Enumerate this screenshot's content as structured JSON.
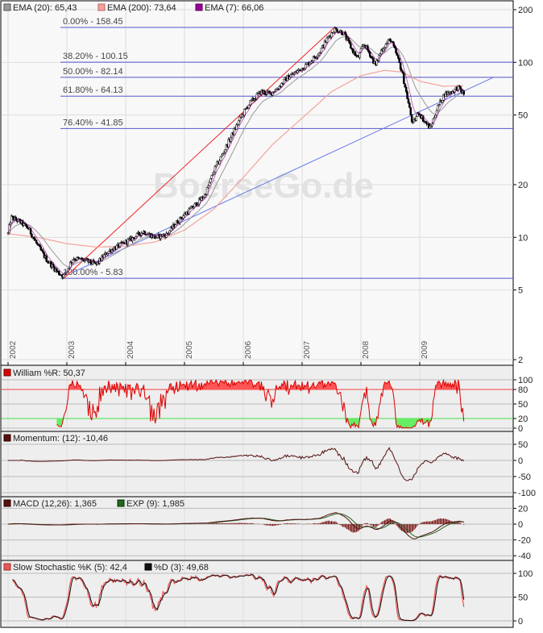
{
  "chart_data": {
    "type": "line",
    "title": "",
    "watermark": "BoerseGo.de",
    "main": {
      "scale": "log",
      "ylim": [
        2,
        200
      ],
      "yticks": [
        "200",
        "100",
        "50",
        "20",
        "10",
        "5",
        "2"
      ],
      "xlim": [
        2001.95,
        2010.25
      ],
      "xticks": [
        "2002",
        "2003",
        "2004",
        "2005",
        "2006",
        "2007",
        "2008",
        "2009"
      ],
      "legend": [
        {
          "label": "EMA (20): 65,43",
          "color": "#999999"
        },
        {
          "label": "EMA (200): 73,64",
          "color": "#f4a39a"
        },
        {
          "label": "EMA (7): 66,06",
          "color": "#990099"
        }
      ],
      "fibonacci": [
        {
          "label": "0.00% - 158.45",
          "value": 158.45
        },
        {
          "label": "38.20% - 100.15",
          "value": 100.15
        },
        {
          "label": "50.00% - 82.14",
          "value": 82.14
        },
        {
          "label": "61.80% - 64.13",
          "value": 64.13
        },
        {
          "label": "76.40% - 41.85",
          "value": 41.85
        },
        {
          "label": "100.00% - 5.83",
          "value": 5.83
        }
      ],
      "trendlines": [
        {
          "name": "red-trendline",
          "from": [
            2002.95,
            5.83
          ],
          "to": [
            2007.55,
            158.45
          ],
          "color": "#ee2222"
        },
        {
          "name": "blue-trendline",
          "from": [
            2003.1,
            6.3
          ],
          "to": [
            2010.25,
            82
          ],
          "color": "#6677ee"
        }
      ],
      "price_keypoints": [
        [
          2002.0,
          10.5
        ],
        [
          2002.05,
          13.0
        ],
        [
          2002.2,
          12.3
        ],
        [
          2002.35,
          11.2
        ],
        [
          2002.5,
          9.0
        ],
        [
          2002.65,
          7.5
        ],
        [
          2002.85,
          6.3
        ],
        [
          2002.95,
          6.0
        ],
        [
          2003.1,
          7.6
        ],
        [
          2003.3,
          7.4
        ],
        [
          2003.5,
          7.0
        ],
        [
          2003.7,
          8.3
        ],
        [
          2003.9,
          9.0
        ],
        [
          2004.1,
          9.8
        ],
        [
          2004.3,
          10.8
        ],
        [
          2004.5,
          10.0
        ],
        [
          2004.7,
          10.4
        ],
        [
          2004.85,
          12.0
        ],
        [
          2005.0,
          13.5
        ],
        [
          2005.2,
          15.5
        ],
        [
          2005.35,
          17.5
        ],
        [
          2005.5,
          24.0
        ],
        [
          2005.65,
          30.0
        ],
        [
          2005.8,
          38.0
        ],
        [
          2005.95,
          48.0
        ],
        [
          2006.1,
          58.0
        ],
        [
          2006.3,
          68.0
        ],
        [
          2006.45,
          66.0
        ],
        [
          2006.6,
          72.0
        ],
        [
          2006.75,
          82.0
        ],
        [
          2006.9,
          88.0
        ],
        [
          2007.1,
          98.0
        ],
        [
          2007.3,
          115.0
        ],
        [
          2007.45,
          140.0
        ],
        [
          2007.55,
          155.0
        ],
        [
          2007.7,
          148.0
        ],
        [
          2007.85,
          118.0
        ],
        [
          2007.95,
          105.0
        ],
        [
          2008.05,
          128.0
        ],
        [
          2008.15,
          112.0
        ],
        [
          2008.25,
          96.0
        ],
        [
          2008.35,
          118.0
        ],
        [
          2008.5,
          136.0
        ],
        [
          2008.6,
          112.0
        ],
        [
          2008.7,
          88.0
        ],
        [
          2008.8,
          60.0
        ],
        [
          2008.88,
          44.0
        ],
        [
          2008.98,
          52.0
        ],
        [
          2009.08,
          46.0
        ],
        [
          2009.18,
          42.0
        ],
        [
          2009.3,
          55.0
        ],
        [
          2009.42,
          66.0
        ],
        [
          2009.55,
          68.0
        ],
        [
          2009.65,
          72.0
        ],
        [
          2009.75,
          66.0
        ]
      ],
      "ema200_keypoints": [
        [
          2002.0,
          10.5
        ],
        [
          2002.5,
          10.0
        ],
        [
          2003.0,
          9.2
        ],
        [
          2003.5,
          8.8
        ],
        [
          2004.0,
          8.9
        ],
        [
          2004.5,
          9.4
        ],
        [
          2005.0,
          11.0
        ],
        [
          2005.5,
          14.5
        ],
        [
          2006.0,
          22.0
        ],
        [
          2006.5,
          34.0
        ],
        [
          2007.0,
          48.0
        ],
        [
          2007.5,
          68.0
        ],
        [
          2008.0,
          84.0
        ],
        [
          2008.4,
          90.0
        ],
        [
          2008.7,
          88.0
        ],
        [
          2009.0,
          78.0
        ],
        [
          2009.4,
          73.0
        ],
        [
          2009.75,
          73.64
        ]
      ]
    },
    "williams": {
      "legend": "William %R: 50,37",
      "color": "#dd0000",
      "yticks": [
        "100",
        "80",
        "50",
        "20",
        "0"
      ],
      "ylim": [
        0,
        100
      ],
      "levels": [
        80,
        20
      ]
    },
    "momentum": {
      "legend": "Momentum: (12): -10,46",
      "color": "#551111",
      "yticks": [
        "50",
        "0",
        "-50",
        "-100"
      ],
      "ylim": [
        -100,
        50
      ]
    },
    "macd": {
      "legend": "MACD (12,26): 1,365",
      "legend2": "EXP (9): 1,985",
      "color": "#551111",
      "color2": "#226622",
      "yticks": [
        "20",
        "0",
        "-20",
        "-40"
      ],
      "ylim": [
        -40,
        20
      ]
    },
    "stochastic": {
      "legend": "Slow Stochastic %K (5): 42,4",
      "legend2": "%D (3): 49,68",
      "color": "#ee5555",
      "color2": "#111111",
      "yticks": [
        "100",
        "50",
        "0"
      ],
      "ylim": [
        0,
        100
      ]
    }
  }
}
